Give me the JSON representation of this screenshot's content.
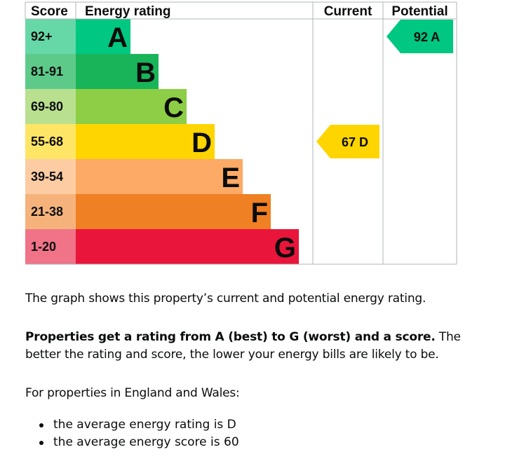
{
  "chart_data": {
    "type": "bar",
    "headers": {
      "score": "Score",
      "rating": "Energy rating",
      "current": "Current",
      "potential": "Potential"
    },
    "bands": [
      {
        "score": "92+",
        "letter": "A",
        "color": "#00c781",
        "score_bg": "#66d8a8"
      },
      {
        "score": "81-91",
        "letter": "B",
        "color": "#19b459",
        "score_bg": "#5dca8a"
      },
      {
        "score": "69-80",
        "letter": "C",
        "color": "#8dce46",
        "score_bg": "#b9e08f"
      },
      {
        "score": "55-68",
        "letter": "D",
        "color": "#ffd500",
        "score_bg": "#ffe566"
      },
      {
        "score": "39-54",
        "letter": "E",
        "color": "#fcaa65",
        "score_bg": "#fdcca3"
      },
      {
        "score": "21-38",
        "letter": "F",
        "color": "#ef8023",
        "score_bg": "#f5b37b"
      },
      {
        "score": "1-20",
        "letter": "G",
        "color": "#e9153b",
        "score_bg": "#f07388"
      }
    ],
    "current": {
      "value": 67,
      "letter": "D",
      "label": "67 D",
      "color": "#ffd500"
    },
    "potential": {
      "value": 92,
      "letter": "A",
      "label": "92 A",
      "color": "#00c781"
    }
  },
  "text": {
    "summary": "The graph shows this property’s current and potential energy rating.",
    "bold_intro": "Properties get a rating from A (best) to G (worst) and a score.",
    "rest": " The better the rating and score, the lower your energy bills are likely to be.",
    "region": "For properties in England and Wales:",
    "bullets": [
      "the average energy rating is D",
      "the average energy score is 60"
    ]
  }
}
